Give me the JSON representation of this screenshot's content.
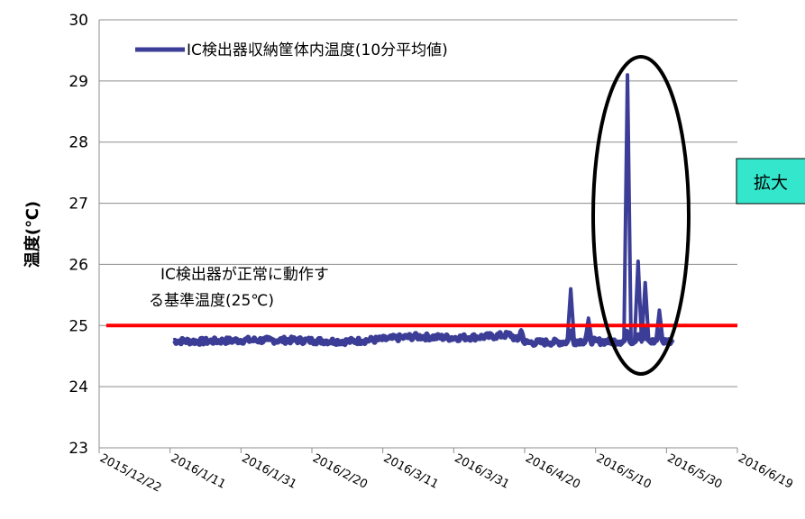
{
  "chart_data": {
    "type": "line",
    "xlabel": "",
    "ylabel": "温度(℃)",
    "ylim": [
      23,
      30
    ],
    "yticks": [
      23,
      24,
      25,
      26,
      27,
      28,
      29,
      30
    ],
    "xlim": [
      "2015-12-22",
      "2016-06-19"
    ],
    "xticks": [
      "2015/12/22",
      "2016/1/11",
      "2016/1/31",
      "2016/2/20",
      "2016/3/11",
      "2016/3/31",
      "2016/4/20",
      "2016/5/10",
      "2016/5/30",
      "2016/6/19"
    ],
    "grid": "horizontal",
    "legend_position": "top-left",
    "series": [
      {
        "name": "IC検出器収納筐体内温度(10分平均値)",
        "color": "#3b3d96",
        "x": [
          "2016-01-12",
          "2016-01-20",
          "2016-02-01",
          "2016-02-15",
          "2016-03-01",
          "2016-03-10",
          "2016-03-20",
          "2016-03-31",
          "2016-04-10",
          "2016-04-16",
          "2016-04-18",
          "2016-04-19",
          "2016-04-20",
          "2016-05-02",
          "2016-05-03",
          "2016-05-04",
          "2016-05-05",
          "2016-05-07",
          "2016-05-08",
          "2016-05-09",
          "2016-05-10",
          "2016-05-18",
          "2016-05-19",
          "2016-05-20",
          "2016-05-21",
          "2016-05-22",
          "2016-05-23",
          "2016-05-24",
          "2016-05-25",
          "2016-05-26",
          "2016-05-27",
          "2016-05-28",
          "2016-05-29",
          "2016-05-30",
          "2016-06-01"
        ],
        "y": [
          24.75,
          24.74,
          24.76,
          24.76,
          24.74,
          24.77,
          24.82,
          24.8,
          24.82,
          24.85,
          24.75,
          24.93,
          24.72,
          24.73,
          25.6,
          24.73,
          24.75,
          24.74,
          25.12,
          24.74,
          24.74,
          24.74,
          29.1,
          24.74,
          24.75,
          26.05,
          24.73,
          25.7,
          24.74,
          24.74,
          24.74,
          25.25,
          24.74,
          24.74,
          24.75
        ]
      },
      {
        "name": "",
        "color": "#ff0000",
        "x": [
          "2015-12-24",
          "2016-06-19"
        ],
        "y": [
          25.0,
          25.0
        ]
      }
    ],
    "annotations": {
      "threshold_label": [
        "IC検出器が正常に動作す",
        "る基準温度(25℃)"
      ],
      "callout": "拡大"
    }
  }
}
